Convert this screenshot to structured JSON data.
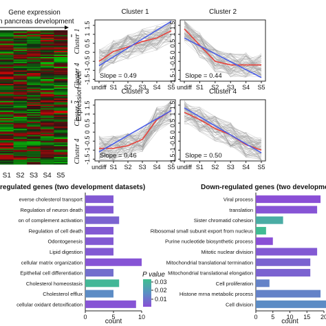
{
  "heatmap": {
    "header_line1": "Gene expression",
    "header_line2": "an pancreas development",
    "columns": [
      "S1",
      "S2",
      "S3",
      "S4",
      "S5"
    ],
    "row_labels": [
      "Cluster 1",
      "Cluster 4",
      "Cluster 3",
      "Cluster 4"
    ]
  },
  "chart_data": [
    {
      "type": "line",
      "title": "Cluster 1",
      "x": [
        "undiff",
        "S1",
        "S2",
        "S3",
        "S4",
        "S5"
      ],
      "ylabel": "",
      "ylim": [
        -1.6,
        1.8
      ],
      "yticks": [
        -1.5,
        -1,
        -0.5,
        0,
        0.5,
        1,
        1.5
      ],
      "mean": [
        -0.5,
        0.05,
        0.3,
        0.6,
        0.8,
        1.2
      ],
      "fit": [
        -0.74,
        -0.25,
        0.24,
        0.74,
        1.23,
        1.72
      ],
      "slope_label": "Slope = 0.49"
    },
    {
      "type": "line",
      "title": "Cluster 2",
      "x": [
        "undiff",
        "S1",
        "S2",
        "S3",
        "S4",
        "S5"
      ],
      "ylabel": "",
      "ylim": [
        -1.6,
        1.8
      ],
      "yticks": [
        -1.5,
        -1,
        -0.5,
        0,
        0.5,
        1,
        1.5
      ],
      "mean": [
        1.3,
        0.4,
        -0.5,
        -0.7,
        -0.7,
        -0.7
      ],
      "fit": [
        0.8,
        0.36,
        -0.08,
        -0.52,
        -0.96,
        -1.4
      ],
      "slope_label": "Slope = 0.44"
    },
    {
      "type": "line",
      "title": "Cluster 3",
      "x": [
        "undiff",
        "S1",
        "S2",
        "S3",
        "S4",
        "S5"
      ],
      "ylabel": "Expression level",
      "ylim": [
        -1.6,
        1.8
      ],
      "yticks": [
        -1.5,
        -1,
        -0.5,
        0,
        0.5,
        1,
        1.5
      ],
      "mean": [
        -0.9,
        -0.9,
        -0.75,
        -0.4,
        0.7,
        1.2
      ],
      "fit": [
        -1.1,
        -0.64,
        -0.18,
        0.28,
        0.74,
        1.2
      ],
      "slope_label": "Slope = 0.46"
    },
    {
      "type": "line",
      "title": "Cluster 4",
      "x": [
        "undiff",
        "S1",
        "S2",
        "S3",
        "S4",
        "S5"
      ],
      "ylabel": "",
      "ylim": [
        -1.6,
        1.8
      ],
      "yticks": [
        -1.5,
        -1,
        -0.5,
        0,
        0.5,
        1,
        1.5
      ],
      "mean": [
        1.1,
        0.7,
        0.2,
        -0.15,
        -0.7,
        -1.0
      ],
      "fit": [
        1.35,
        0.85,
        0.35,
        -0.15,
        -0.65,
        -1.15
      ],
      "slope_label": "Slope = 0.50"
    },
    {
      "type": "bar",
      "title": "regulated genes (two development datasets)",
      "xlabel": "count",
      "xlim": [
        0,
        10
      ],
      "xticks": [
        0,
        5,
        10
      ],
      "categories": [
        "everse cholesterol transport",
        "Regulation of neuron death",
        "on of complement activation",
        "Regulation of cell death",
        "Odontogenesis",
        "Lipid digestion",
        "cellular matrix organization",
        "Epithelial cell differentiation",
        "Cholesterol homeostasis",
        "Cholesterol efflux",
        "cellular oxidant detoxification"
      ],
      "values": [
        5,
        5,
        6,
        5,
        5,
        5,
        10,
        5,
        6,
        5,
        9
      ],
      "p_values": [
        0.012,
        0.012,
        0.014,
        0.012,
        0.012,
        0.012,
        0.011,
        0.016,
        0.033,
        0.022,
        0.011
      ]
    },
    {
      "type": "bar",
      "title": "Down-regulated genes (two development",
      "xlabel": "count",
      "xlim": [
        0,
        20
      ],
      "xticks": [
        0,
        5,
        10,
        15,
        20
      ],
      "categories": [
        "Viral process",
        "translation",
        "Sister chromatid cohesion",
        "Ribosomal small subunit export from nucleus",
        "Purine nucleotide biosynthetic process",
        "Mitotic nuclear division",
        "Mitochondrial translational termination",
        "Mitochondrial translational elongation",
        "Cell proliferation",
        "Histone mrna metabolic process",
        "Cell division"
      ],
      "values": [
        19,
        18,
        8,
        3,
        5,
        18,
        16,
        16,
        4,
        19,
        21
      ],
      "p_values": [
        0.01,
        0.011,
        0.03,
        0.034,
        0.01,
        0.012,
        0.014,
        0.014,
        0.02,
        0.02,
        0.022
      ]
    }
  ],
  "legend": {
    "title": "P value",
    "ticks": [
      "0.03",
      "0.02",
      "0.01"
    ],
    "color_high": "#3fbf8f",
    "color_low": "#8a4fd6"
  }
}
